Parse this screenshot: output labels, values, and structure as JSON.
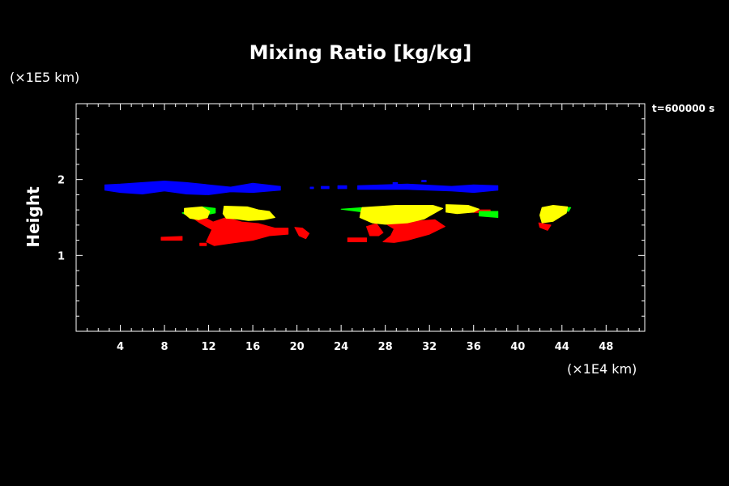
{
  "chart_data": {
    "type": "heatmap",
    "title": "Mixing Ratio [kg/kg]",
    "ylabel": "Height",
    "y_unit": "(×1E5 km)",
    "x_unit": "(×1E4 km)",
    "time_label": "t=600000 s",
    "xlim": [
      0,
      51.5
    ],
    "ylim": [
      0,
      3
    ],
    "x_ticks": [
      "4",
      "8",
      "12",
      "16",
      "20",
      "24",
      "28",
      "32",
      "36",
      "40",
      "44",
      "48"
    ],
    "y_ticks": [
      "1",
      "2"
    ],
    "grid": false,
    "colors": {
      "background": "#000000",
      "axes": "#ffffff",
      "blue": "#0000ff",
      "green": "#00ff00",
      "yellow": "#ffff00",
      "red": "#ff0000"
    },
    "regions": [
      {
        "color": "blue",
        "pts": [
          [
            2.6,
            1.93
          ],
          [
            4,
            1.94
          ],
          [
            6,
            1.96
          ],
          [
            8,
            1.98
          ],
          [
            10,
            1.96
          ],
          [
            12,
            1.93
          ],
          [
            14,
            1.9
          ],
          [
            16,
            1.95
          ],
          [
            18.5,
            1.91
          ],
          [
            18.5,
            1.86
          ],
          [
            16,
            1.83
          ],
          [
            14,
            1.84
          ],
          [
            12,
            1.8
          ],
          [
            10,
            1.81
          ],
          [
            8,
            1.85
          ],
          [
            6,
            1.81
          ],
          [
            4,
            1.83
          ],
          [
            2.6,
            1.86
          ]
        ]
      },
      {
        "color": "blue",
        "pts": [
          [
            25.5,
            1.92
          ],
          [
            30,
            1.94
          ],
          [
            34,
            1.91
          ],
          [
            36,
            1.93
          ],
          [
            38.2,
            1.92
          ],
          [
            38.2,
            1.86
          ],
          [
            36,
            1.83
          ],
          [
            34,
            1.85
          ],
          [
            30,
            1.87
          ],
          [
            25.5,
            1.87
          ]
        ]
      },
      {
        "color": "blue",
        "pts": [
          [
            22.2,
            1.91
          ],
          [
            22.9,
            1.91
          ],
          [
            22.9,
            1.88
          ],
          [
            22.2,
            1.88
          ]
        ]
      },
      {
        "color": "blue",
        "pts": [
          [
            23.7,
            1.92
          ],
          [
            24.5,
            1.92
          ],
          [
            24.5,
            1.88
          ],
          [
            23.7,
            1.88
          ]
        ]
      },
      {
        "color": "blue",
        "pts": [
          [
            28.7,
            1.96
          ],
          [
            29.1,
            1.96
          ],
          [
            29.1,
            1.94
          ],
          [
            28.7,
            1.94
          ]
        ]
      },
      {
        "color": "blue",
        "pts": [
          [
            31.3,
            1.99
          ],
          [
            31.7,
            1.99
          ],
          [
            31.7,
            1.97
          ],
          [
            31.3,
            1.97
          ]
        ]
      },
      {
        "color": "blue",
        "pts": [
          [
            21.2,
            1.9
          ],
          [
            21.5,
            1.9
          ],
          [
            21.5,
            1.88
          ],
          [
            21.2,
            1.88
          ]
        ]
      },
      {
        "color": "red",
        "pts": [
          [
            10.5,
            1.5
          ],
          [
            11.4,
            1.52
          ],
          [
            12.4,
            1.44
          ],
          [
            13.6,
            1.5
          ],
          [
            15,
            1.44
          ],
          [
            16.5,
            1.42
          ],
          [
            18,
            1.36
          ],
          [
            19.2,
            1.36
          ],
          [
            19.2,
            1.28
          ],
          [
            17.5,
            1.26
          ],
          [
            16,
            1.2
          ],
          [
            14,
            1.16
          ],
          [
            12.5,
            1.13
          ],
          [
            11.8,
            1.18
          ],
          [
            12.3,
            1.34
          ],
          [
            11.2,
            1.43
          ]
        ]
      },
      {
        "color": "red",
        "pts": [
          [
            7.7,
            1.24
          ],
          [
            9.6,
            1.25
          ],
          [
            9.6,
            1.2
          ],
          [
            7.7,
            1.2
          ]
        ]
      },
      {
        "color": "red",
        "pts": [
          [
            11.2,
            1.16
          ],
          [
            11.8,
            1.16
          ],
          [
            11.8,
            1.13
          ],
          [
            11.2,
            1.13
          ]
        ]
      },
      {
        "color": "red",
        "pts": [
          [
            19.8,
            1.37
          ],
          [
            20.5,
            1.36
          ],
          [
            21.1,
            1.29
          ],
          [
            20.8,
            1.22
          ],
          [
            20.2,
            1.26
          ]
        ]
      },
      {
        "color": "red",
        "pts": [
          [
            24.6,
            1.23
          ],
          [
            26.3,
            1.23
          ],
          [
            26.3,
            1.18
          ],
          [
            24.6,
            1.18
          ]
        ]
      },
      {
        "color": "red",
        "pts": [
          [
            26.3,
            1.38
          ],
          [
            27.2,
            1.42
          ],
          [
            27.8,
            1.3
          ],
          [
            27.4,
            1.26
          ],
          [
            26.6,
            1.26
          ]
        ]
      },
      {
        "color": "red",
        "pts": [
          [
            28,
            1.42
          ],
          [
            32.5,
            1.47
          ],
          [
            33.4,
            1.38
          ],
          [
            32,
            1.28
          ],
          [
            30,
            1.2
          ],
          [
            28.8,
            1.17
          ],
          [
            27.8,
            1.18
          ],
          [
            28.5,
            1.26
          ],
          [
            28.8,
            1.35
          ]
        ]
      },
      {
        "color": "red",
        "pts": [
          [
            35.5,
            1.6
          ],
          [
            37.5,
            1.6
          ],
          [
            37.5,
            1.56
          ],
          [
            35.5,
            1.57
          ]
        ]
      },
      {
        "color": "red",
        "pts": [
          [
            41.9,
            1.43
          ],
          [
            43,
            1.4
          ],
          [
            42.7,
            1.33
          ],
          [
            42,
            1.37
          ]
        ]
      },
      {
        "color": "green",
        "pts": [
          [
            9.6,
            1.56
          ],
          [
            11.4,
            1.64
          ],
          [
            12.6,
            1.62
          ],
          [
            12.6,
            1.56
          ],
          [
            10.5,
            1.5
          ]
        ]
      },
      {
        "color": "green",
        "pts": [
          [
            14,
            1.63
          ],
          [
            16,
            1.62
          ],
          [
            16,
            1.58
          ],
          [
            14,
            1.59
          ]
        ]
      },
      {
        "color": "green",
        "pts": [
          [
            24,
            1.61
          ],
          [
            26,
            1.63
          ],
          [
            26,
            1.57
          ]
        ]
      },
      {
        "color": "green",
        "pts": [
          [
            36.5,
            1.58
          ],
          [
            38.2,
            1.58
          ],
          [
            38.2,
            1.5
          ],
          [
            36.5,
            1.52
          ]
        ]
      },
      {
        "color": "green",
        "pts": [
          [
            43.5,
            1.64
          ],
          [
            44.8,
            1.63
          ],
          [
            44.6,
            1.58
          ],
          [
            43.5,
            1.6
          ]
        ]
      },
      {
        "color": "yellow",
        "pts": [
          [
            9.8,
            1.62
          ],
          [
            11.4,
            1.64
          ],
          [
            12.1,
            1.58
          ],
          [
            11.9,
            1.5
          ],
          [
            11.1,
            1.47
          ],
          [
            10.3,
            1.49
          ],
          [
            9.8,
            1.55
          ]
        ]
      },
      {
        "color": "yellow",
        "pts": [
          [
            13.4,
            1.65
          ],
          [
            15.5,
            1.64
          ],
          [
            16.5,
            1.6
          ],
          [
            17.5,
            1.58
          ],
          [
            18,
            1.5
          ],
          [
            17,
            1.47
          ],
          [
            15.6,
            1.46
          ],
          [
            14.6,
            1.48
          ],
          [
            13.6,
            1.49
          ],
          [
            13.3,
            1.55
          ]
        ]
      },
      {
        "color": "yellow",
        "pts": [
          [
            25.9,
            1.63
          ],
          [
            29,
            1.66
          ],
          [
            32.3,
            1.66
          ],
          [
            33.2,
            1.62
          ],
          [
            31.5,
            1.48
          ],
          [
            30,
            1.43
          ],
          [
            28,
            1.41
          ],
          [
            26.8,
            1.43
          ],
          [
            25.7,
            1.5
          ],
          [
            25.8,
            1.58
          ]
        ]
      },
      {
        "color": "yellow",
        "pts": [
          [
            33.5,
            1.67
          ],
          [
            35.5,
            1.66
          ],
          [
            36.5,
            1.61
          ],
          [
            36,
            1.57
          ],
          [
            34.5,
            1.55
          ],
          [
            33.5,
            1.57
          ]
        ]
      },
      {
        "color": "yellow",
        "pts": [
          [
            42.2,
            1.63
          ],
          [
            43.2,
            1.66
          ],
          [
            44.5,
            1.64
          ],
          [
            44.4,
            1.56
          ],
          [
            43.2,
            1.45
          ],
          [
            42.2,
            1.43
          ],
          [
            42,
            1.53
          ]
        ]
      }
    ]
  }
}
